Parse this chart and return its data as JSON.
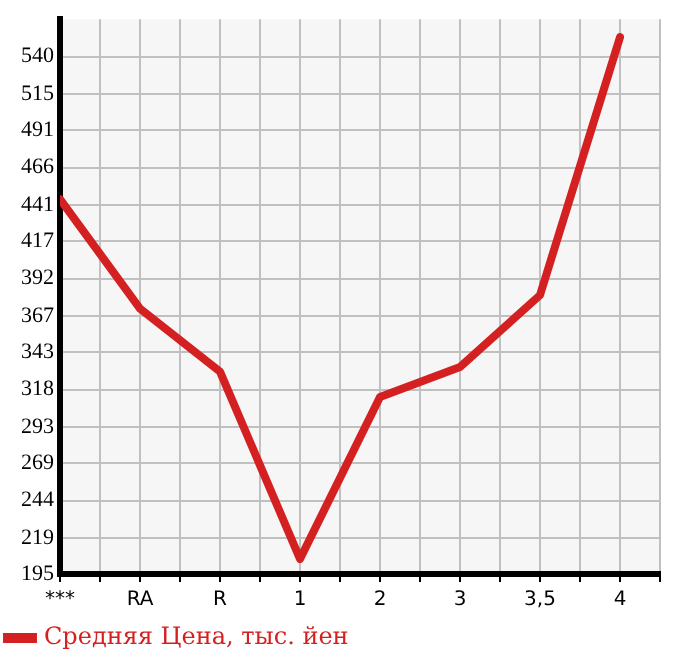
{
  "chart_data": {
    "type": "line",
    "categories": [
      "***",
      "RA",
      "R",
      "1",
      "2",
      "3",
      "3,5",
      "4"
    ],
    "series": [
      {
        "name": "Средняя Цена, тыс. йен",
        "color": "#d42020",
        "values": [
          445,
          372,
          330,
          205,
          313,
          333,
          381,
          553
        ]
      }
    ],
    "ylim": [
      195,
      565
    ],
    "yticks": [
      195,
      219,
      244,
      269,
      293,
      318,
      343,
      367,
      392,
      417,
      441,
      466,
      491,
      515,
      540
    ],
    "grid": true,
    "legend": "bottom left",
    "marker": "none",
    "line_style": "solid"
  }
}
